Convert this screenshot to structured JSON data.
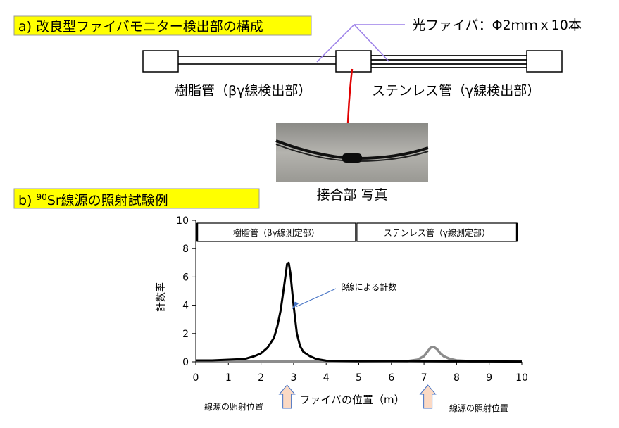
{
  "section_a": {
    "title": "a) 改良型ファイバモニター検出部の構成",
    "fiber_label": "光ファイバ：Φ2ｍｍｘ10本",
    "resin_label": "樹脂管（βγ線検出部）",
    "stainless_label": "ステンレス管（γ線検出部）",
    "photo_caption": "接合部 写真",
    "highlight_color": "#ffff00",
    "pointer_color": "#9b7fe8",
    "joint_line_color": "#e00000"
  },
  "section_b": {
    "title_prefix": "b) ",
    "title_sup": "90",
    "title_rest": "Sr線源の照射試験例"
  },
  "chart_data": {
    "type": "line",
    "xlabel": "ファイバの位置（m）",
    "ylabel": "計数率",
    "xlim": [
      0,
      10
    ],
    "ylim": [
      0,
      10
    ],
    "xticks": [
      "0",
      "1",
      "2",
      "3",
      "4",
      "5",
      "6",
      "7",
      "8",
      "9",
      "10"
    ],
    "yticks": [
      "0",
      "2",
      "4",
      "6",
      "8",
      "10"
    ],
    "grid": false,
    "regions": [
      {
        "label": "樹脂管（βγ線測定部）",
        "from": 0,
        "to": 4.9
      },
      {
        "label": "ステンレス管（γ線測定部）",
        "from": 4.9,
        "to": 9.85
      }
    ],
    "annotation": {
      "label": "β線による計数",
      "x": 2.95,
      "y": 3.7
    },
    "source_positions": [
      {
        "x": 2.8,
        "label": "線源の照射位置"
      },
      {
        "x": 7.4,
        "label": "線源の照射位置"
      }
    ],
    "series": [
      {
        "color": "#000000",
        "x": [
          0,
          0.5,
          1,
          1.5,
          1.8,
          2.0,
          2.2,
          2.4,
          2.5,
          2.6,
          2.7,
          2.8,
          2.85,
          2.9,
          3.0,
          3.1,
          3.2,
          3.3,
          3.5,
          3.7,
          4.0,
          5.0,
          6.0,
          7.0,
          8.0,
          9.0,
          10.0
        ],
        "y": [
          0.1,
          0.1,
          0.15,
          0.2,
          0.4,
          0.6,
          1.0,
          1.7,
          2.5,
          3.6,
          5.2,
          6.9,
          7.0,
          6.3,
          4.0,
          2.0,
          1.1,
          0.7,
          0.4,
          0.2,
          0.08,
          0.05,
          0.05,
          0.04,
          0.03,
          0.03,
          0.02
        ]
      },
      {
        "color": "#8c8c8c",
        "x": [
          0,
          6.5,
          6.8,
          7.0,
          7.1,
          7.2,
          7.3,
          7.4,
          7.5,
          7.6,
          7.8,
          8.0,
          8.5,
          10.0
        ],
        "y": [
          0,
          0.05,
          0.15,
          0.4,
          0.7,
          1.0,
          1.05,
          0.9,
          0.6,
          0.4,
          0.2,
          0.1,
          0.03,
          0.02
        ]
      }
    ]
  }
}
